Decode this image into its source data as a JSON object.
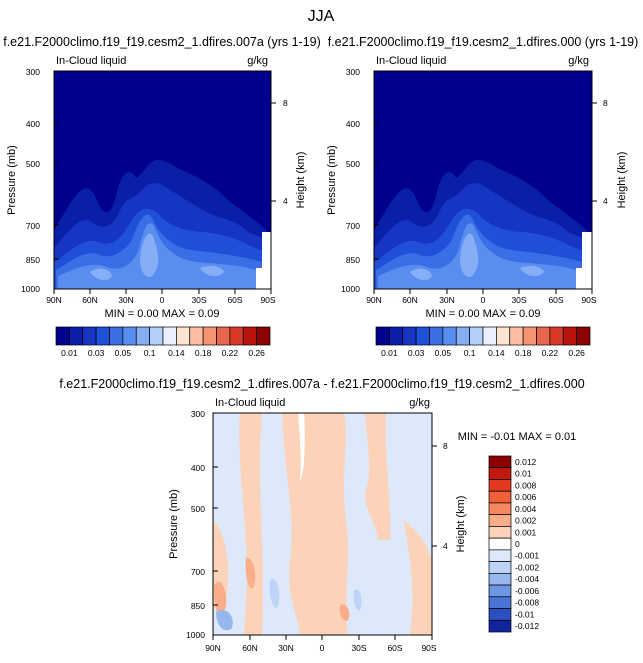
{
  "page_title": "JJA",
  "chart_data": [
    {
      "type": "heatmap",
      "title": "f.e21.F2000climo.f19_f19.cesm2_1.dfires.007a (yrs 1-19)",
      "left_label": "In-Cloud liquid",
      "right_label": "g/kg",
      "ylabel": "Pressure (mb)",
      "ylabel_right": "Height (km)",
      "x_ticks": [
        "90N",
        "60N",
        "30N",
        "0",
        "30S",
        "60S",
        "90S"
      ],
      "y_ticks": [
        "300",
        "400",
        "500",
        "700",
        "850",
        "1000"
      ],
      "height_ticks": [
        "8",
        "4"
      ],
      "ylim": [
        1000,
        300
      ],
      "stats": "MIN =  0.00  MAX =  0.09",
      "levels": [
        "0.01",
        "0.03",
        "0.05",
        "0.1",
        "0.14",
        "0.18",
        "0.22",
        "0.26"
      ]
    },
    {
      "type": "heatmap",
      "title": "f.e21.F2000climo.f19_f19.cesm2_1.dfires.000 (yrs 1-19)",
      "left_label": "In-Cloud liquid",
      "right_label": "g/kg",
      "ylabel": "Pressure (mb)",
      "ylabel_right": "Height (km)",
      "x_ticks": [
        "90N",
        "60N",
        "30N",
        "0",
        "30S",
        "60S",
        "90S"
      ],
      "y_ticks": [
        "300",
        "400",
        "500",
        "700",
        "850",
        "1000"
      ],
      "height_ticks": [
        "8",
        "4"
      ],
      "ylim": [
        1000,
        300
      ],
      "stats": "MIN =  0.00  MAX =  0.09",
      "levels": [
        "0.01",
        "0.03",
        "0.05",
        "0.1",
        "0.14",
        "0.18",
        "0.22",
        "0.26"
      ]
    },
    {
      "type": "heatmap",
      "title": "f.e21.F2000climo.f19_f19.cesm2_1.dfires.007a - f.e21.F2000climo.f19_f19.cesm2_1.dfires.000",
      "left_label": "In-Cloud liquid",
      "right_label": "g/kg",
      "ylabel": "Pressure (mb)",
      "ylabel_right": "Height (km)",
      "x_ticks": [
        "90N",
        "60N",
        "30N",
        "0",
        "30S",
        "60S",
        "90S"
      ],
      "y_ticks": [
        "300",
        "400",
        "500",
        "700",
        "850",
        "1000"
      ],
      "height_ticks": [
        "8",
        "4"
      ],
      "ylim": [
        1000,
        300
      ],
      "stats": "MIN = -0.01  MAX =  0.01",
      "levels": [
        "0.012",
        "0.01",
        "0.008",
        "0.006",
        "0.004",
        "0.002",
        "0.001",
        "0",
        "-0.001",
        "-0.002",
        "-0.004",
        "-0.006",
        "-0.008",
        "-0.01",
        "-0.012"
      ]
    }
  ],
  "colors": {
    "abs_scale": [
      "#00008c",
      "#0a1fa8",
      "#1535c2",
      "#2050d8",
      "#3a6ee6",
      "#5a8df0",
      "#86aef6",
      "#b6cff9",
      "#e8efff",
      "#fde2cf",
      "#fbbfa0",
      "#f59475",
      "#e8664a",
      "#d63a26",
      "#b8140e",
      "#8a0000"
    ],
    "diff_scale": [
      "#8a0000",
      "#c01a10",
      "#e23a1e",
      "#f0613a",
      "#f58860",
      "#f9ad88",
      "#fcd3b8",
      "#ffffff",
      "#dde9fb",
      "#bed4f6",
      "#97b8ef",
      "#6e97e4",
      "#4a74d6",
      "#2a50c0",
      "#10259c"
    ]
  }
}
